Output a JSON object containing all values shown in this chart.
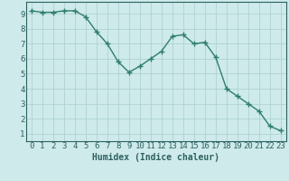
{
  "x": [
    0,
    1,
    2,
    3,
    4,
    5,
    6,
    7,
    8,
    9,
    10,
    11,
    12,
    13,
    14,
    15,
    16,
    17,
    18,
    19,
    20,
    21,
    22,
    23
  ],
  "y": [
    9.2,
    9.1,
    9.1,
    9.2,
    9.2,
    8.8,
    7.8,
    7.0,
    5.8,
    5.1,
    5.5,
    6.0,
    6.5,
    7.5,
    7.6,
    7.0,
    7.1,
    6.1,
    4.0,
    3.5,
    3.0,
    2.5,
    1.5,
    1.2
  ],
  "line_color": "#2e7d6e",
  "marker": "+",
  "markersize": 4,
  "linewidth": 1.0,
  "markeredgewidth": 1.0,
  "xlabel": "Humidex (Indice chaleur)",
  "xlabel_fontsize": 7,
  "bg_color": "#ceeaea",
  "grid_color": "#aacece",
  "tick_color": "#2e6060",
  "axis_color": "#2e6060",
  "xlim": [
    -0.5,
    23.5
  ],
  "ylim": [
    0.5,
    9.8
  ],
  "xticks": [
    0,
    1,
    2,
    3,
    4,
    5,
    6,
    7,
    8,
    9,
    10,
    11,
    12,
    13,
    14,
    15,
    16,
    17,
    18,
    19,
    20,
    21,
    22,
    23
  ],
  "yticks": [
    1,
    2,
    3,
    4,
    5,
    6,
    7,
    8,
    9
  ],
  "tick_fontsize": 6.5
}
